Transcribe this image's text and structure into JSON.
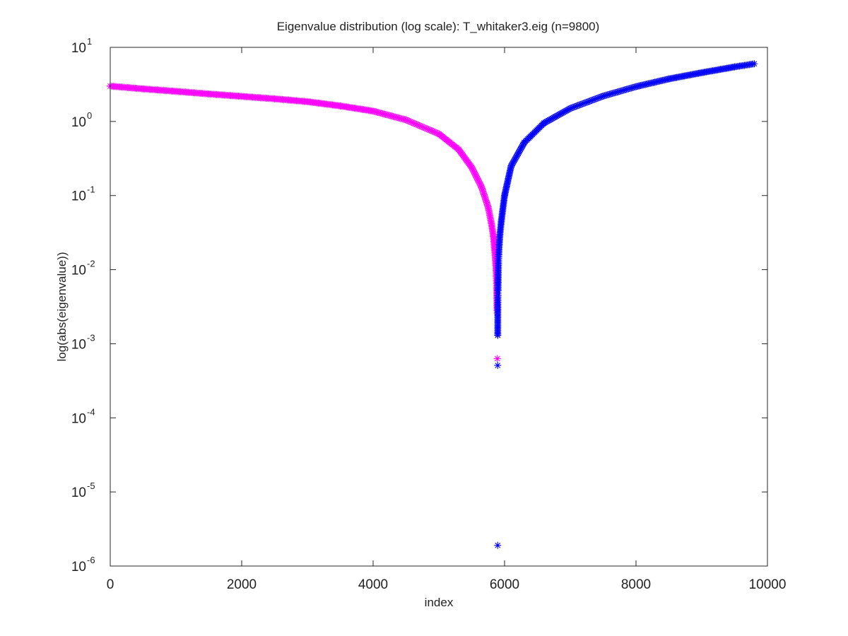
{
  "chart_data": {
    "type": "scatter",
    "title": "Eigenvalue distribution (log scale): T_whitaker3.eig (n=9800)",
    "xlabel": "index",
    "ylabel": "log(abs(eigenvalue))",
    "x_scale": "linear",
    "y_scale": "log",
    "xlim": [
      0,
      10000
    ],
    "ylim": [
      1e-06,
      10
    ],
    "x_ticks": [
      "0",
      "2000",
      "4000",
      "6000",
      "8000",
      "10000"
    ],
    "y_ticks": [
      {
        "base": "10",
        "exp": "1"
      },
      {
        "base": "10",
        "exp": "0"
      },
      {
        "base": "10",
        "exp": "-1"
      },
      {
        "base": "10",
        "exp": "-2"
      },
      {
        "base": "10",
        "exp": "-3"
      },
      {
        "base": "10",
        "exp": "-4"
      },
      {
        "base": "10",
        "exp": "-5"
      },
      {
        "base": "10",
        "exp": "-6"
      }
    ],
    "grid": false,
    "marker": "*",
    "series": [
      {
        "color": "#ff00ff",
        "points": [
          [
            0,
            3.0
          ],
          [
            500,
            2.75
          ],
          [
            1000,
            2.55
          ],
          [
            1500,
            2.35
          ],
          [
            2000,
            2.18
          ],
          [
            2500,
            2.02
          ],
          [
            3000,
            1.85
          ],
          [
            3500,
            1.62
          ],
          [
            4000,
            1.38
          ],
          [
            4500,
            1.05
          ],
          [
            5000,
            0.68
          ],
          [
            5300,
            0.42
          ],
          [
            5500,
            0.24
          ],
          [
            5650,
            0.13
          ],
          [
            5750,
            0.07
          ],
          [
            5800,
            0.042
          ],
          [
            5830,
            0.028
          ],
          [
            5850,
            0.018
          ],
          [
            5865,
            0.012
          ],
          [
            5875,
            0.008
          ],
          [
            5880,
            0.0055
          ],
          [
            5882,
            0.0045
          ],
          [
            5884,
            0.0033
          ],
          [
            5886,
            0.0028
          ],
          [
            5888,
            0.0026
          ],
          [
            5890,
            0.00063
          ]
        ]
      },
      {
        "color": "#0000ff",
        "points": [
          [
            5895,
            1.9e-06
          ],
          [
            5895,
            0.00051
          ],
          [
            5896,
            0.0013
          ],
          [
            5897,
            0.0029
          ],
          [
            5898,
            0.0036
          ],
          [
            5899,
            0.0045
          ],
          [
            5900,
            0.0052
          ],
          [
            5902,
            0.0067
          ],
          [
            5904,
            0.0087
          ],
          [
            5907,
            0.012
          ],
          [
            5912,
            0.016
          ],
          [
            5920,
            0.022
          ],
          [
            5930,
            0.03
          ],
          [
            5950,
            0.045
          ],
          [
            6000,
            0.1
          ],
          [
            6100,
            0.25
          ],
          [
            6300,
            0.52
          ],
          [
            6600,
            0.95
          ],
          [
            7000,
            1.5
          ],
          [
            7500,
            2.2
          ],
          [
            8000,
            2.95
          ],
          [
            8500,
            3.75
          ],
          [
            9000,
            4.55
          ],
          [
            9500,
            5.45
          ],
          [
            9800,
            6.0
          ]
        ]
      }
    ]
  }
}
